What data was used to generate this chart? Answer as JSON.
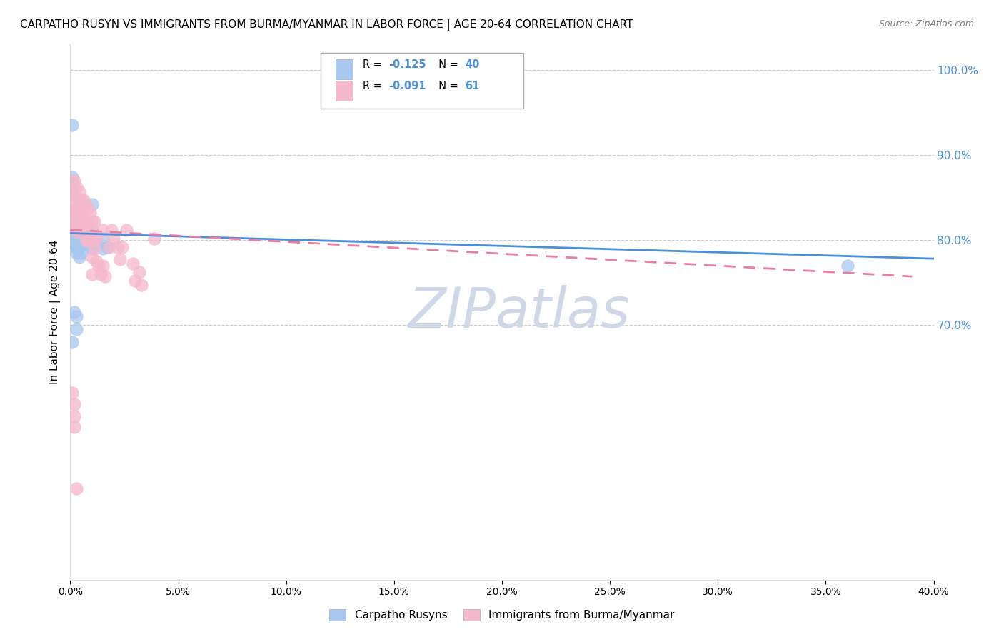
{
  "title": "CARPATHO RUSYN VS IMMIGRANTS FROM BURMA/MYANMAR IN LABOR FORCE | AGE 20-64 CORRELATION CHART",
  "source": "Source: ZipAtlas.com",
  "ylabel": "In Labor Force | Age 20-64",
  "xlim": [
    0.0,
    0.4
  ],
  "ylim": [
    0.4,
    1.03
  ],
  "xticks": [
    0.0,
    0.05,
    0.1,
    0.15,
    0.2,
    0.25,
    0.3,
    0.35,
    0.4
  ],
  "yticks_right": [
    0.7,
    0.8,
    0.9,
    1.0
  ],
  "grid_color": "#cccccc",
  "background_color": "#ffffff",
  "watermark": "ZIPatlas",
  "watermark_color": "#d0d8e8",
  "series1_color": "#a8c8f0",
  "series2_color": "#f5b8cc",
  "series1_label": "Carpatho Rusyns",
  "series2_label": "Immigrants from Burma/Myanmar",
  "R1": -0.125,
  "N1": 40,
  "R2": -0.091,
  "N2": 61,
  "R_color": "#4a90d9",
  "N_color": "#4a90d9",
  "series1_x": [
    0.001,
    0.001,
    0.001,
    0.002,
    0.002,
    0.002,
    0.002,
    0.003,
    0.003,
    0.003,
    0.003,
    0.003,
    0.003,
    0.004,
    0.004,
    0.004,
    0.004,
    0.005,
    0.005,
    0.005,
    0.006,
    0.006,
    0.007,
    0.007,
    0.008,
    0.008,
    0.009,
    0.01,
    0.01,
    0.01,
    0.012,
    0.015,
    0.015,
    0.017,
    0.002,
    0.003,
    0.003,
    0.001,
    0.36,
    0.001
  ],
  "series1_y": [
    0.874,
    0.857,
    0.855,
    0.82,
    0.818,
    0.806,
    0.795,
    0.813,
    0.808,
    0.8,
    0.795,
    0.79,
    0.785,
    0.812,
    0.8,
    0.79,
    0.78,
    0.822,
    0.8,
    0.785,
    0.812,
    0.795,
    0.822,
    0.8,
    0.812,
    0.795,
    0.802,
    0.842,
    0.812,
    0.79,
    0.795,
    0.802,
    0.79,
    0.792,
    0.715,
    0.71,
    0.695,
    0.935,
    0.77,
    0.68
  ],
  "series2_x": [
    0.001,
    0.001,
    0.001,
    0.001,
    0.002,
    0.002,
    0.002,
    0.002,
    0.003,
    0.003,
    0.003,
    0.003,
    0.003,
    0.003,
    0.004,
    0.004,
    0.004,
    0.005,
    0.005,
    0.005,
    0.005,
    0.006,
    0.006,
    0.007,
    0.007,
    0.007,
    0.008,
    0.008,
    0.008,
    0.009,
    0.009,
    0.01,
    0.01,
    0.01,
    0.01,
    0.011,
    0.011,
    0.012,
    0.012,
    0.013,
    0.014,
    0.015,
    0.015,
    0.016,
    0.018,
    0.019,
    0.02,
    0.022,
    0.023,
    0.024,
    0.026,
    0.029,
    0.03,
    0.032,
    0.033,
    0.039,
    0.001,
    0.002,
    0.002,
    0.002,
    0.003
  ],
  "series2_y": [
    0.87,
    0.855,
    0.835,
    0.82,
    0.87,
    0.85,
    0.835,
    0.815,
    0.862,
    0.85,
    0.84,
    0.83,
    0.82,
    0.81,
    0.857,
    0.84,
    0.825,
    0.847,
    0.83,
    0.82,
    0.81,
    0.847,
    0.825,
    0.842,
    0.82,
    0.8,
    0.837,
    0.82,
    0.8,
    0.832,
    0.81,
    0.822,
    0.8,
    0.78,
    0.76,
    0.822,
    0.79,
    0.802,
    0.775,
    0.77,
    0.76,
    0.812,
    0.77,
    0.757,
    0.792,
    0.812,
    0.802,
    0.792,
    0.777,
    0.792,
    0.812,
    0.772,
    0.752,
    0.762,
    0.747,
    0.802,
    0.62,
    0.607,
    0.592,
    0.58,
    0.507
  ],
  "trend1_x": [
    0.0,
    0.4
  ],
  "trend1_y": [
    0.808,
    0.778
  ],
  "trend2_x": [
    0.0,
    0.39
  ],
  "trend2_y": [
    0.812,
    0.757
  ],
  "trend1_color": "#4a90d9",
  "trend2_color": "#e87ea1"
}
